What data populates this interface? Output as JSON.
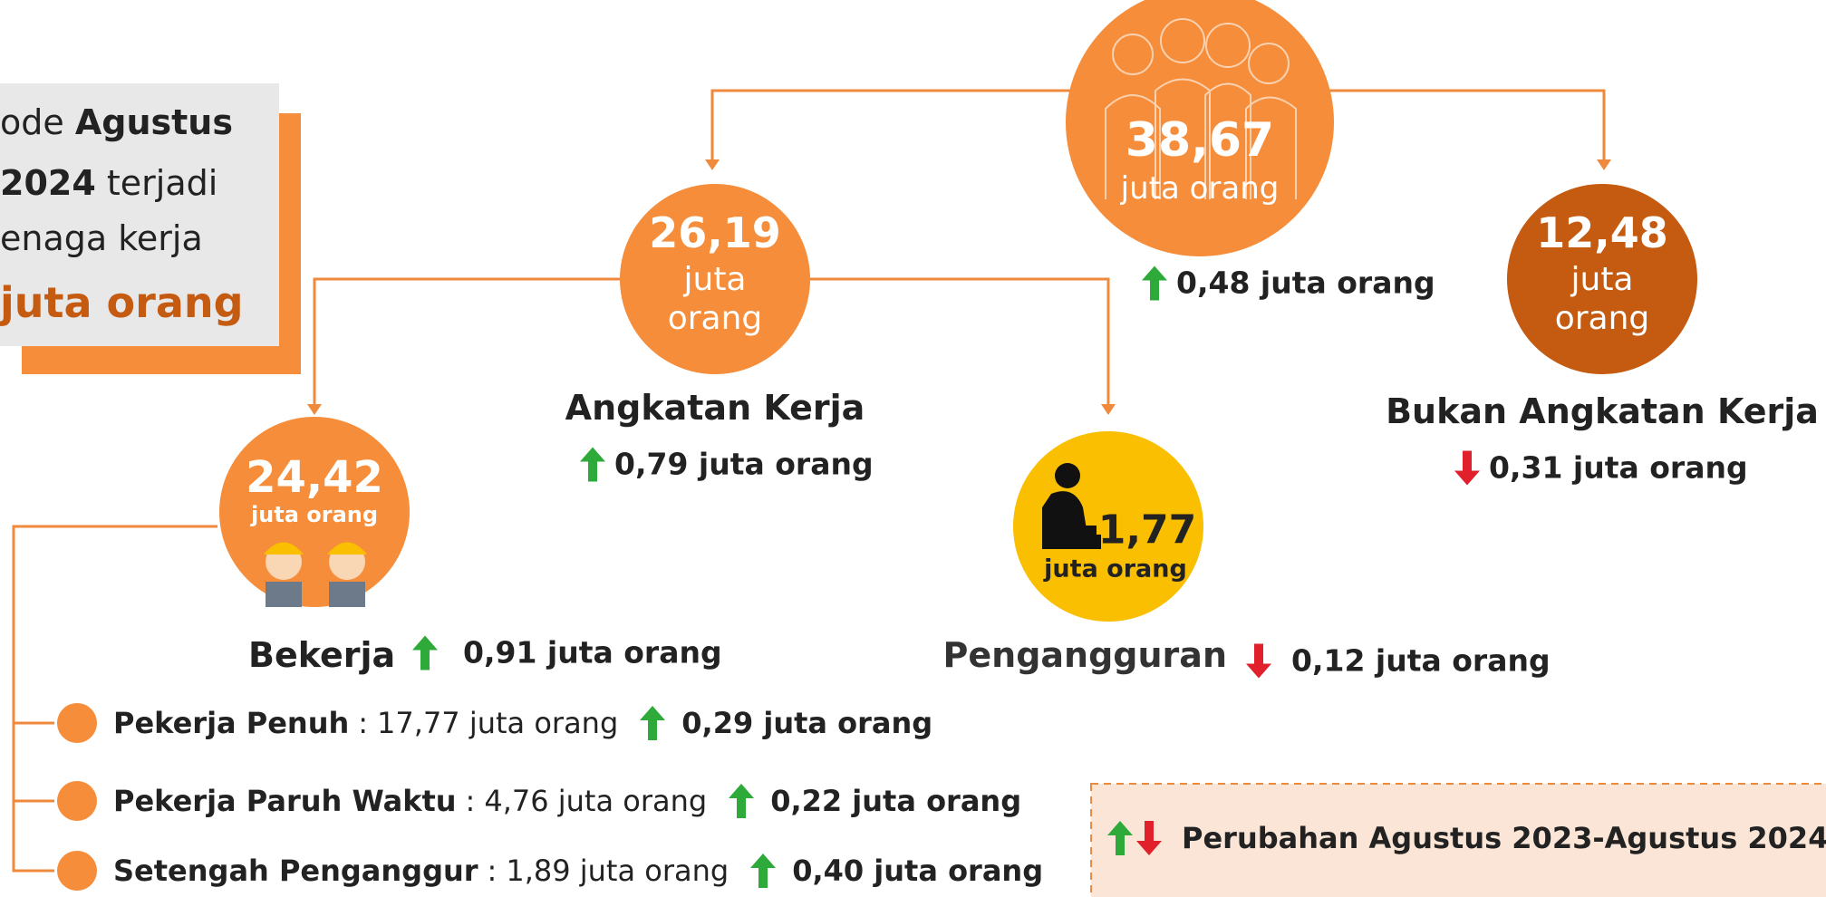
{
  "summary": [
    {
      "plain": "ode",
      "bold": "Agustus"
    },
    {
      "bold": "2024",
      "plain": "terjadi"
    },
    {
      "plain": "enaga kerja"
    },
    {
      "highlight": "juta orang"
    }
  ],
  "nodes": {
    "total": {
      "value": "38,67",
      "unit": "juta orang",
      "change": "0,48 juta orang",
      "direction": "up"
    },
    "angkatan_kerja": {
      "value": "26,19",
      "unit": "juta orang",
      "label": "Angkatan Kerja",
      "change": "0,79 juta orang",
      "direction": "up"
    },
    "bukan_angkatan_kerja": {
      "value": "12,48",
      "unit": "juta orang",
      "label": "Bukan Angkatan Kerja",
      "change": "0,31 juta orang",
      "direction": "down"
    },
    "bekerja": {
      "value": "24,42",
      "unit": "juta orang",
      "label": "Bekerja",
      "change": "0,91 juta orang",
      "direction": "up"
    },
    "pengangguran": {
      "value": "1,77",
      "unit": "juta orang",
      "label": "Pengangguran",
      "change": "0,12 juta orang",
      "direction": "down"
    }
  },
  "breakdown_separator": ":",
  "breakdown": [
    {
      "name": "Pekerja Penuh",
      "value": "17,77 juta orang",
      "change": "0,29 juta orang",
      "direction": "up"
    },
    {
      "name": "Pekerja Paruh Waktu",
      "value": "4,76 juta orang",
      "change": "0,22 juta orang",
      "direction": "up"
    },
    {
      "name": "Setengah Penganggur",
      "value": "1,89 juta orang",
      "change": "0,40 juta orang",
      "direction": "up"
    }
  ],
  "legend": {
    "text": "Perubahan Agustus 2023-Agustus 2024"
  }
}
